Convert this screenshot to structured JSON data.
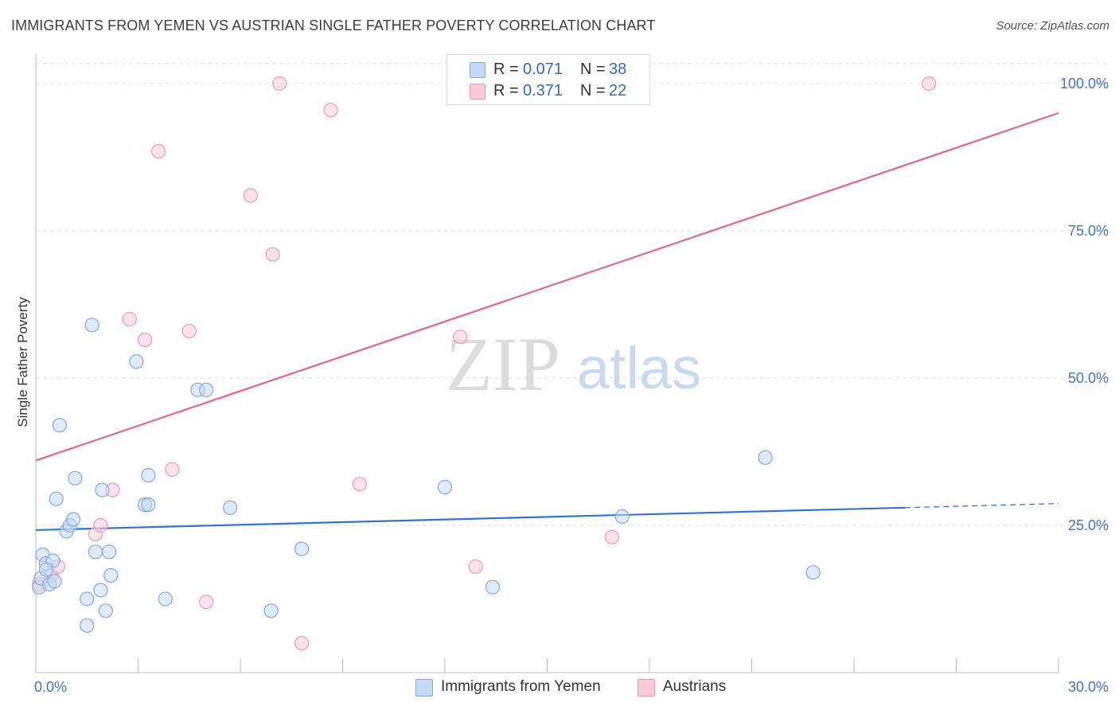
{
  "title": "IMMIGRANTS FROM YEMEN VS AUSTRIAN SINGLE FATHER POVERTY CORRELATION CHART",
  "source": "Source: ZipAtlas.com",
  "watermark": {
    "zip": "ZIP",
    "atlas": "atlas"
  },
  "legend": {
    "series1": {
      "r_label": "R =",
      "r_value": "0.071",
      "n_label": "N =",
      "n_value": "38"
    },
    "series2": {
      "r_label": "R =",
      "r_value": "0.371",
      "n_label": "N =",
      "n_value": "22"
    }
  },
  "colors": {
    "blue_fill": "#c5d9f6",
    "blue_stroke": "#7eaae4",
    "blue_line": "#2f74cf",
    "pink_fill": "#f9cbd8",
    "pink_stroke": "#ee9ab3",
    "pink_line": "#e2658d",
    "axis_text": "#3f74c6",
    "grid": "#dddddd"
  },
  "chart_data": {
    "type": "scatter",
    "title": "IMMIGRANTS FROM YEMEN VS AUSTRIAN SINGLE FATHER POVERTY CORRELATION CHART",
    "xlabel": "",
    "ylabel": "Single Father Poverty",
    "xlim": [
      0,
      30
    ],
    "ylim": [
      0,
      105
    ],
    "x_tick_labels": [
      "0.0%",
      "30.0%"
    ],
    "y_ticks": [
      25,
      50,
      75,
      100
    ],
    "y_tick_labels": [
      "25.0%",
      "50.0%",
      "75.0%",
      "100.0%"
    ],
    "series": [
      {
        "name": "Immigrants from Yemen",
        "color": "#7eaae4",
        "R": 0.071,
        "N": 38,
        "trend": {
          "x0": 0,
          "y0": 24.2,
          "x1": 25.5,
          "y1": 28.0,
          "dash_to_x": 30,
          "dash_to_y": 28.7
        },
        "points": [
          [
            0.1,
            14.5
          ],
          [
            0.15,
            16.0
          ],
          [
            0.2,
            20.0
          ],
          [
            0.3,
            18.5
          ],
          [
            0.4,
            15.0
          ],
          [
            0.5,
            19.0
          ],
          [
            0.55,
            15.5
          ],
          [
            0.6,
            29.5
          ],
          [
            0.7,
            42.0
          ],
          [
            0.9,
            24.0
          ],
          [
            1.0,
            25.0
          ],
          [
            1.1,
            26.0
          ],
          [
            1.15,
            33.0
          ],
          [
            1.5,
            12.5
          ],
          [
            1.5,
            8.0
          ],
          [
            1.65,
            59.0
          ],
          [
            1.75,
            20.5
          ],
          [
            1.9,
            14.0
          ],
          [
            1.95,
            31.0
          ],
          [
            2.05,
            10.5
          ],
          [
            2.15,
            20.5
          ],
          [
            2.2,
            16.5
          ],
          [
            2.95,
            52.8
          ],
          [
            3.2,
            28.5
          ],
          [
            3.3,
            28.5
          ],
          [
            3.3,
            33.5
          ],
          [
            3.8,
            12.5
          ],
          [
            4.75,
            48.0
          ],
          [
            5.0,
            48.0
          ],
          [
            5.7,
            28.0
          ],
          [
            6.9,
            10.5
          ],
          [
            7.8,
            21.0
          ],
          [
            12.0,
            31.5
          ],
          [
            13.4,
            14.5
          ],
          [
            17.2,
            26.5
          ],
          [
            21.4,
            36.5
          ],
          [
            22.8,
            17.0
          ],
          [
            0.3,
            17.5
          ]
        ]
      },
      {
        "name": "Austrians",
        "color": "#ee9ab3",
        "R": 0.371,
        "N": 22,
        "trend": {
          "x0": 0,
          "y0": 36.0,
          "x1": 30,
          "y1": 95.0
        },
        "points": [
          [
            0.1,
            15.0
          ],
          [
            0.45,
            16.5
          ],
          [
            0.65,
            18.0
          ],
          [
            1.75,
            23.5
          ],
          [
            1.9,
            25.0
          ],
          [
            2.25,
            31.0
          ],
          [
            2.75,
            60.0
          ],
          [
            3.2,
            56.5
          ],
          [
            3.6,
            88.5
          ],
          [
            4.0,
            34.5
          ],
          [
            4.5,
            58.0
          ],
          [
            5.0,
            12.0
          ],
          [
            6.3,
            81.0
          ],
          [
            6.95,
            71.0
          ],
          [
            7.15,
            100.0
          ],
          [
            7.8,
            5.0
          ],
          [
            8.65,
            95.5
          ],
          [
            9.5,
            32.0
          ],
          [
            12.45,
            57.0
          ],
          [
            12.9,
            18.0
          ],
          [
            16.9,
            23.0
          ],
          [
            26.2,
            100.0
          ]
        ]
      }
    ]
  }
}
